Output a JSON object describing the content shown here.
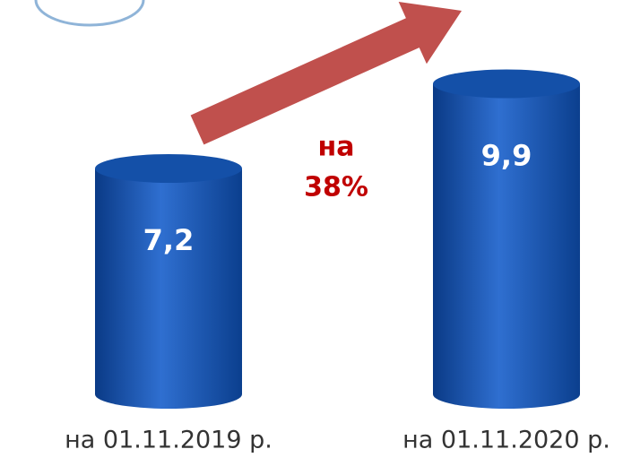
{
  "chart_data": {
    "type": "bar",
    "categories": [
      "на 01.11.2019 р.",
      "на 01.11.2020 р."
    ],
    "values": [
      7.2,
      9.9
    ],
    "value_labels": [
      "7,2",
      "9,9"
    ],
    "color": "#1450a8",
    "annotation": [
      "на",
      "38%"
    ],
    "annotation_color": "#c00000",
    "arrow_color": "#c0504d"
  }
}
